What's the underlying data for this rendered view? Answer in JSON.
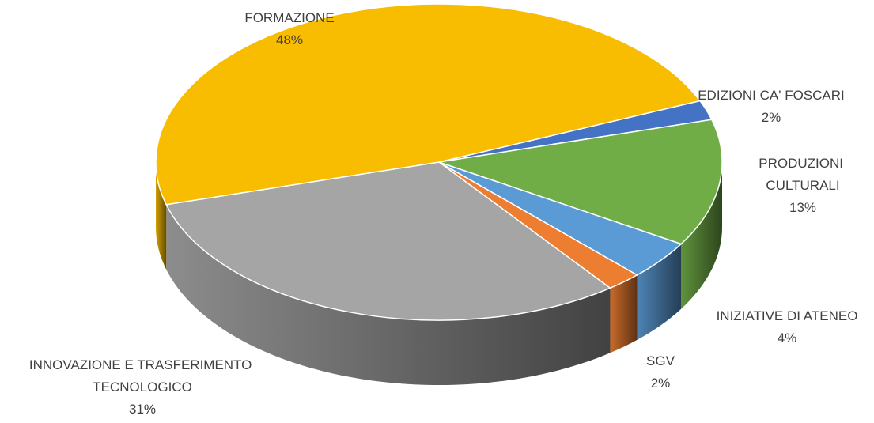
{
  "chart_data": {
    "type": "pie3d",
    "categories": [
      "EDIZIONI CA' FOSCARI",
      "PRODUZIONI CULTURALI",
      "INIZIATIVE DI ATENEO",
      "SGV",
      "INNOVAZIONE E TRASFERIMENTO TECNOLOGICO",
      "FORMAZIONE"
    ],
    "values": [
      2,
      13,
      4,
      2,
      31,
      48
    ],
    "value_labels": [
      "2%",
      "13%",
      "4%",
      "2%",
      "31%",
      "48%"
    ],
    "colors": [
      "#4472c4",
      "#70ad47",
      "#5b9bd5",
      "#ed7d31",
      "#a5a5a5",
      "#f8bc00"
    ]
  }
}
